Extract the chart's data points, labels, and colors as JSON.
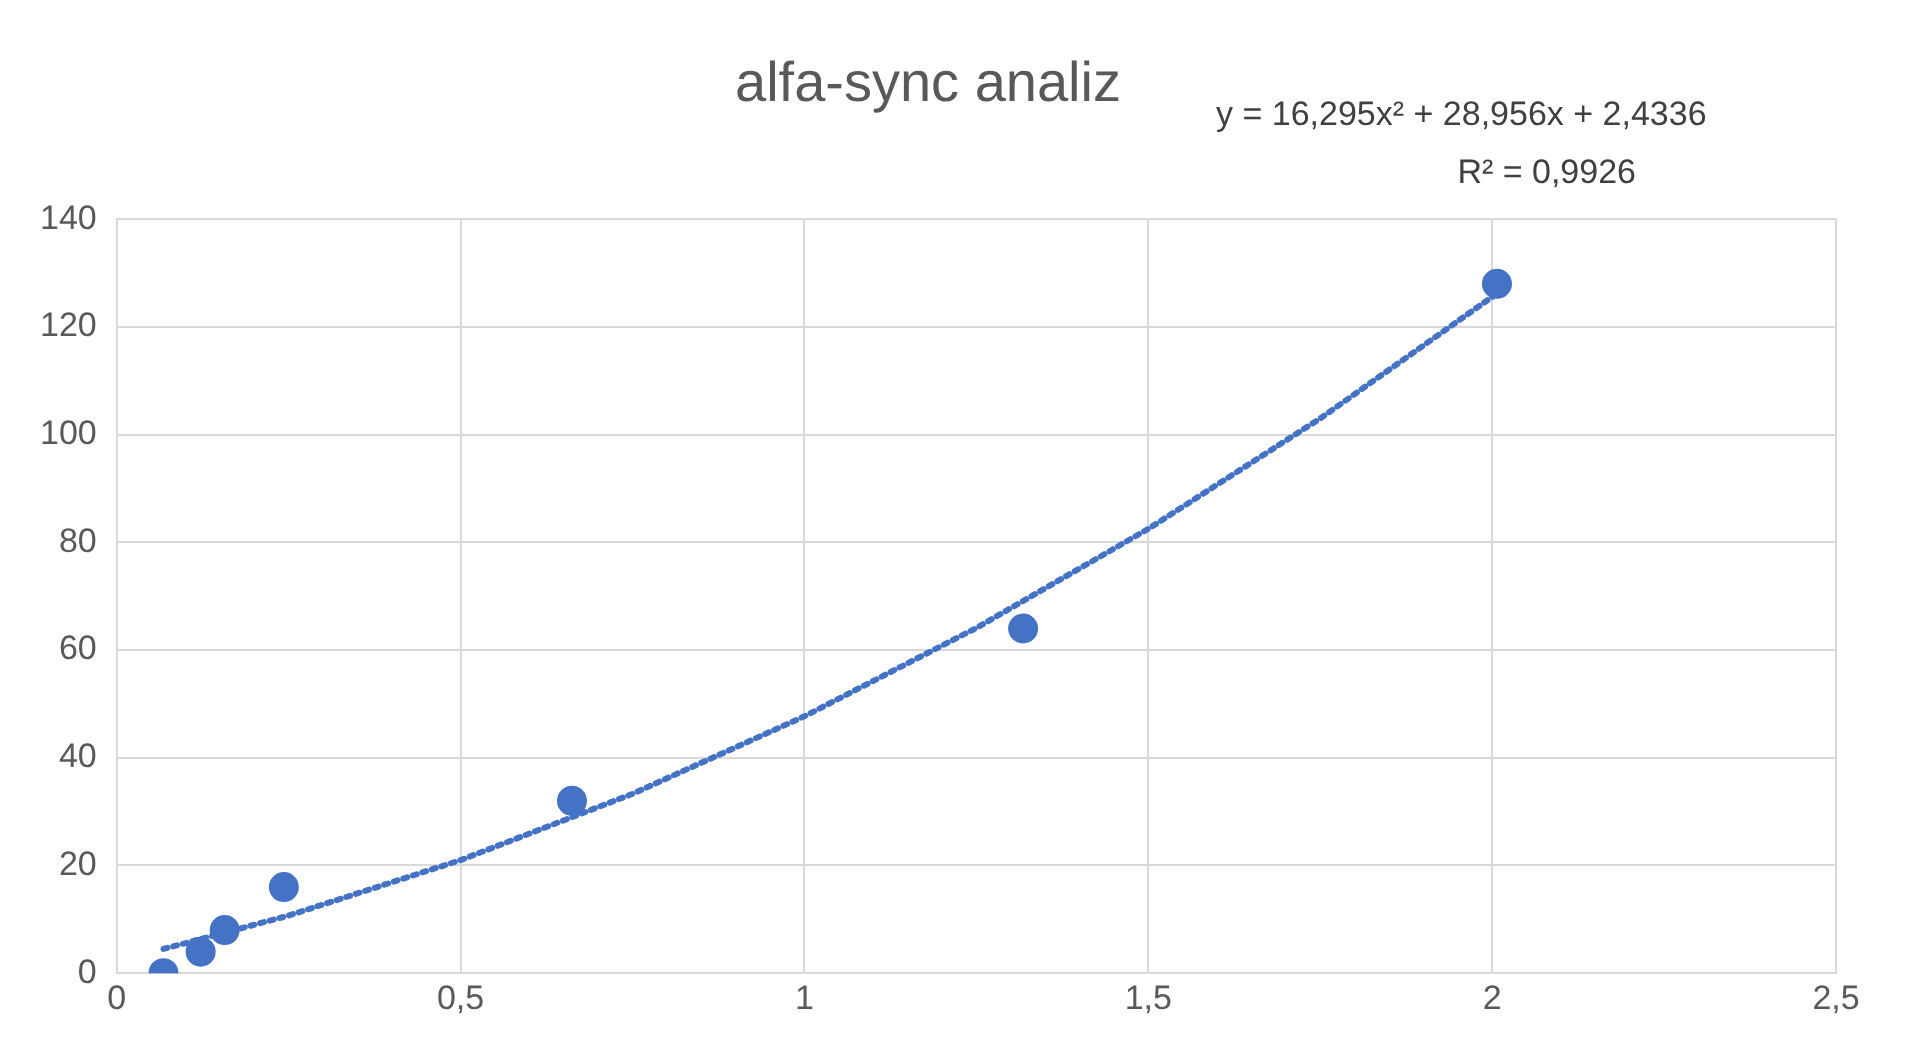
{
  "chart_data": {
    "type": "scatter",
    "title": "alfa-sync analiz",
    "annotations": [
      "y = 16,295x² + 28,956x + 2,4336",
      "R² = 0,9926"
    ],
    "series": [
      {
        "color": "#4472c4",
        "marker": "circle",
        "x": [
          0.068,
          0.122,
          0.157,
          0.243,
          0.662,
          1.318,
          2.007
        ],
        "values": [
          0,
          4,
          8,
          16,
          32,
          64,
          128
        ]
      },
      {
        "type": "line",
        "color": "#4472c4",
        "marker": "none",
        "line_style": "dotted",
        "x": [
          0.068,
          0.25,
          0.5,
          0.75,
          1,
          1.25,
          1.5,
          1.75,
          2.007
        ],
        "values": [
          4.5,
          10.7,
          21.0,
          33.3,
          47.7,
          64.1,
          82.5,
          103.0,
          126.2
        ]
      }
    ],
    "xlim": [
      0,
      2.5
    ],
    "xticks": [
      0,
      {
        "value": 0.5,
        "label": "0,5"
      },
      1,
      {
        "value": 1.5,
        "label": "1,5"
      },
      2,
      {
        "value": 2.5,
        "label": "2,5"
      }
    ],
    "ylim": [
      0,
      140
    ],
    "yticks": [
      0,
      20,
      40,
      60,
      80,
      100,
      120,
      140
    ],
    "grid": true,
    "legend": false
  }
}
